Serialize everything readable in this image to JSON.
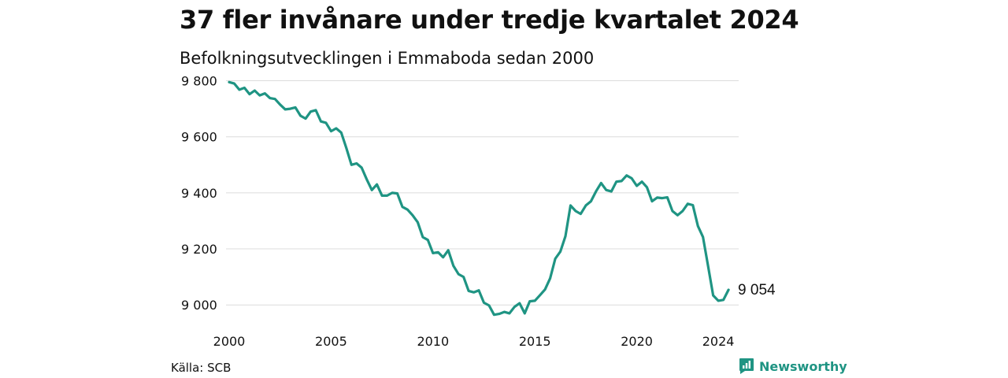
{
  "chart_data": {
    "type": "line",
    "title": "37 fler invånare under tredje kvartalet 2024",
    "subtitle": "Befolkningsutvecklingen i Emmaboda sedan 2000",
    "x_ticks": [
      "2000",
      "2005",
      "2010",
      "2015",
      "2020",
      "2024"
    ],
    "y_ticks": [
      "9 000",
      "9 200",
      "9 400",
      "9 600",
      "9 800"
    ],
    "y_tick_values": [
      9000,
      9200,
      9400,
      9600,
      9800
    ],
    "ylim": [
      8950,
      9810
    ],
    "xlim": [
      2000,
      2025
    ],
    "grid": "horizontal",
    "line_color": "#1f9483",
    "last_value_label": "9 054",
    "x": [
      2000.0,
      2000.25,
      2000.5,
      2000.75,
      2001.0,
      2001.25,
      2001.5,
      2001.75,
      2002.0,
      2002.25,
      2002.5,
      2002.75,
      2003.0,
      2003.25,
      2003.5,
      2003.75,
      2004.0,
      2004.25,
      2004.5,
      2004.75,
      2005.0,
      2005.25,
      2005.5,
      2005.75,
      2006.0,
      2006.25,
      2006.5,
      2006.75,
      2007.0,
      2007.25,
      2007.5,
      2007.75,
      2008.0,
      2008.25,
      2008.5,
      2008.75,
      2009.0,
      2009.25,
      2009.5,
      2009.75,
      2010.0,
      2010.25,
      2010.5,
      2010.75,
      2011.0,
      2011.25,
      2011.5,
      2011.75,
      2012.0,
      2012.25,
      2012.5,
      2012.75,
      2013.0,
      2013.25,
      2013.5,
      2013.75,
      2014.0,
      2014.25,
      2014.5,
      2014.75,
      2015.0,
      2015.25,
      2015.5,
      2015.75,
      2016.0,
      2016.25,
      2016.5,
      2016.75,
      2017.0,
      2017.25,
      2017.5,
      2017.75,
      2018.0,
      2018.25,
      2018.5,
      2018.75,
      2019.0,
      2019.25,
      2019.5,
      2019.75,
      2020.0,
      2020.25,
      2020.5,
      2020.75,
      2021.0,
      2021.25,
      2021.5,
      2021.75,
      2022.0,
      2022.25,
      2022.5,
      2022.75,
      2023.0,
      2023.25,
      2023.5,
      2023.75,
      2024.0,
      2024.25,
      2024.5
    ],
    "series": [
      {
        "values": [
          9795,
          9790,
          9768,
          9775,
          9752,
          9765,
          9748,
          9755,
          9738,
          9735,
          9715,
          9698,
          9700,
          9705,
          9675,
          9665,
          9690,
          9695,
          9655,
          9650,
          9620,
          9630,
          9615,
          9560,
          9500,
          9505,
          9490,
          9448,
          9410,
          9430,
          9390,
          9390,
          9400,
          9398,
          9350,
          9340,
          9320,
          9295,
          9242,
          9232,
          9185,
          9188,
          9170,
          9195,
          9140,
          9110,
          9100,
          9050,
          9045,
          9052,
          9008,
          8998,
          8965,
          8968,
          8975,
          8970,
          8993,
          9006,
          8970,
          9013,
          9015,
          9035,
          9055,
          9095,
          9165,
          9190,
          9245,
          9355,
          9335,
          9325,
          9355,
          9370,
          9405,
          9435,
          9410,
          9405,
          9440,
          9442,
          9462,
          9452,
          9425,
          9440,
          9420,
          9370,
          9383,
          9381,
          9384,
          9335,
          9320,
          9335,
          9361,
          9356,
          9282,
          9242,
          9138,
          9034,
          9015,
          9018,
          9054
        ]
      }
    ]
  },
  "footer": {
    "source_label": "Källa: SCB",
    "brand_name": "Newsworthy",
    "brand_color": "#1f9483",
    "brand_icon": "newsworthy-logo-icon"
  }
}
